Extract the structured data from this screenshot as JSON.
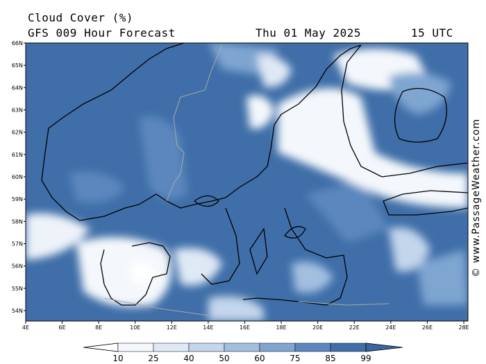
{
  "header": {
    "title": "Cloud Cover (%)",
    "model": "GFS 009 Hour Forecast",
    "date": "Thu 01 May 2025",
    "time": "15 UTC"
  },
  "credit": "© www.PassageWeather.com",
  "axes": {
    "lat_labels": [
      "66N",
      "65N",
      "64N",
      "63N",
      "62N",
      "61N",
      "60N",
      "59N",
      "58N",
      "57N",
      "56N",
      "55N",
      "54N"
    ],
    "lon_labels": [
      "4E",
      "6E",
      "8E",
      "10E",
      "12E",
      "14E",
      "16E",
      "18E",
      "20E",
      "22E",
      "24E",
      "26E",
      "28E"
    ]
  },
  "colorbar": {
    "labels": [
      "10",
      "25",
      "40",
      "50",
      "60",
      "75",
      "85",
      "99"
    ],
    "colors": [
      "#f4f8fc",
      "#dfe9f5",
      "#c3d6ec",
      "#a3bfe0",
      "#7fa5d1",
      "#5b87be",
      "#3f6ea8"
    ]
  },
  "palette": {
    "dark": "#3f6ea8",
    "mid": "#5b87be",
    "light": "#a3bfe0",
    "pale": "#dfe9f5"
  }
}
